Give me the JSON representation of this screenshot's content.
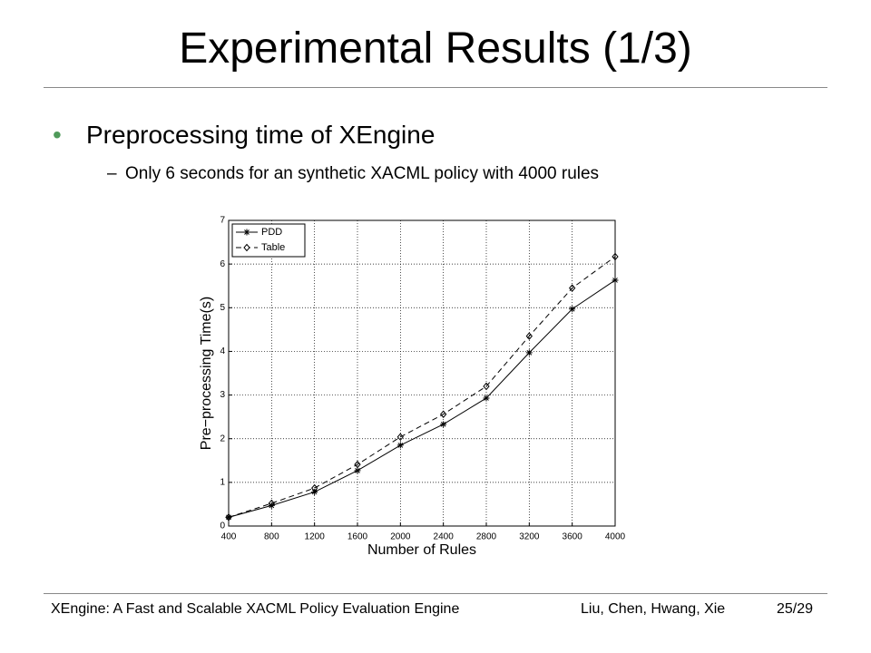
{
  "header": {
    "title": "Experimental Results (1/3)"
  },
  "bullets": [
    {
      "text": "Preprocessing time of XEngine",
      "marker": "•"
    },
    {
      "text": "Only 6 seconds for an synthetic XACML policy with 4000 rules",
      "marker": "–"
    }
  ],
  "footer": {
    "left": "XEngine: A Fast and Scalable XACML Policy Evaluation Engine",
    "authors": "Liu, Chen, Hwang, Xie",
    "page": "25/29"
  },
  "chart_data": {
    "type": "line",
    "xlabel": "Number of Rules",
    "ylabel": "Pre−processing Time(s)",
    "x": [
      400,
      800,
      1200,
      1600,
      2000,
      2400,
      2800,
      3200,
      3600,
      4000
    ],
    "xlim": [
      400,
      4000
    ],
    "xticks": [
      400,
      800,
      1200,
      1600,
      2000,
      2400,
      2800,
      3200,
      3600,
      4000
    ],
    "ylim": [
      0,
      7
    ],
    "yticks": [
      0,
      1,
      2,
      3,
      4,
      5,
      6,
      7
    ],
    "grid": true,
    "legend": "upper left",
    "series": [
      {
        "name": "PDD",
        "color": "#000000",
        "linestyle": "solid",
        "marker": "asterisk",
        "values": [
          0.2,
          0.47,
          0.78,
          1.27,
          1.85,
          2.33,
          2.93,
          3.97,
          4.97,
          5.63
        ]
      },
      {
        "name": "Table",
        "color": "#000000",
        "linestyle": "dashed",
        "marker": "diamond",
        "values": [
          0.2,
          0.52,
          0.87,
          1.41,
          2.04,
          2.56,
          3.2,
          4.35,
          5.45,
          6.17
        ]
      }
    ]
  }
}
